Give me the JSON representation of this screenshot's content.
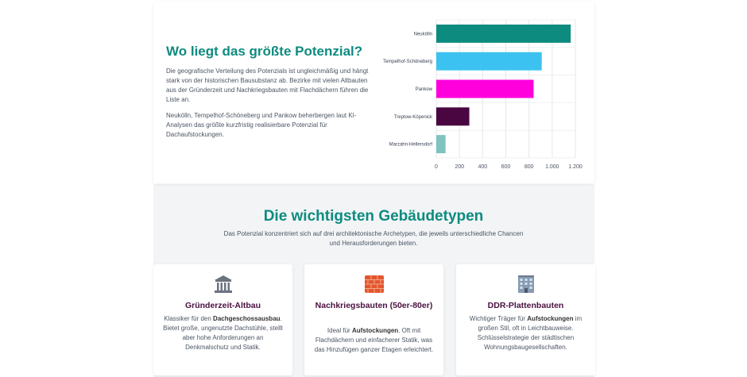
{
  "intro": {
    "title": "Wo liegt das größte Potenzial?",
    "p1": "Die geografische Verteilung des Potenzials ist ungleichmäßig und hängt stark von der historischen Bausubstanz ab. Bezirke mit vielen Altbauten aus der Gründerzeit und Nachkriegsbauten mit Flachdächern führen die Liste an.",
    "p2": "Neukölln, Tempelhof-Schöneberg und Pankow beherbergen laut KI-Analysen das größte kurzfristig realisierbare Potenzial für Dachaufstockungen."
  },
  "chart_data": {
    "type": "bar",
    "orientation": "horizontal",
    "categories": [
      "Neukölln",
      "Tempelhof-Schöneberg",
      "Pankow",
      "Treptow-Köpenick",
      "Marzahn-Hellersdorf"
    ],
    "values": [
      1160,
      910,
      840,
      285,
      80
    ],
    "colors": [
      "#0e8b7f",
      "#3cc2f0",
      "#ff00dd",
      "#4a0640",
      "#7fc3bf"
    ],
    "xlim": [
      0,
      1200
    ],
    "ticks": [
      0,
      200,
      400,
      600,
      800,
      1000,
      1200
    ],
    "tick_labels": [
      "0",
      "200",
      "400",
      "600",
      "800",
      "1.000",
      "1.200"
    ],
    "grid": true,
    "title": "",
    "xlabel": "",
    "ylabel": ""
  },
  "types": {
    "title": "Die wichtigsten Gebäudetypen",
    "subtitle": "Das Potenzial konzentriert sich auf drei architektonische Archetypen, die jeweils unterschiedliche Chancen und Herausforderungen bieten.",
    "cards": [
      {
        "icon": "classical-building-icon",
        "title": "Gründerzeit-Altbau",
        "text_before": "Klassiker für den",
        "bold": "Dachgeschossausbau",
        "text_after": ". Bietet große, ungenutzte Dachstühle, stellt aber hohe Anforderungen an Denkmalschutz und Statik."
      },
      {
        "icon": "brick-icon",
        "title": "Nachkriegsbauten (50er-80er)",
        "text_before": "Ideal für",
        "bold": "Aufstockungen",
        "text_after": ". Oft mit Flachdächern und einfacherer Statik, was das Hinzufügen ganzer Etagen erleichtert."
      },
      {
        "icon": "office-building-icon",
        "title": "DDR-Plattenbauten",
        "text_before": "Wichtiger Träger für",
        "bold": "Aufstockungen",
        "text_after": "im großen Stil, oft in Leichtbauweise. Schlüsselstrategie der städtischen Wohnungsbaugesellschaften."
      }
    ]
  }
}
